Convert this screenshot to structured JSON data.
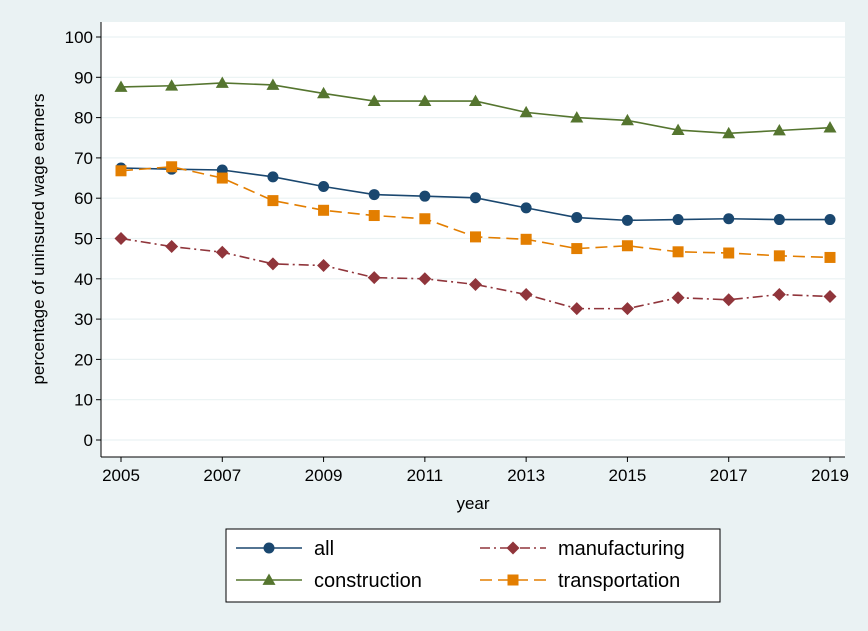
{
  "chart_data": {
    "type": "line",
    "xlabel": "year",
    "ylabel": "percentage of uninsured wage earners",
    "xlim": [
      2005,
      2019
    ],
    "ylim": [
      0,
      100
    ],
    "x_ticks": [
      2005,
      2007,
      2009,
      2011,
      2013,
      2015,
      2017,
      2019
    ],
    "y_ticks": [
      0,
      10,
      20,
      30,
      40,
      50,
      60,
      70,
      80,
      90,
      100
    ],
    "grid": "horizontal",
    "legend_position": "bottom",
    "x": [
      2005,
      2006,
      2007,
      2008,
      2009,
      2010,
      2011,
      2012,
      2013,
      2014,
      2015,
      2016,
      2017,
      2018,
      2019
    ],
    "series": [
      {
        "name": "all",
        "color": "#1a476f",
        "marker": "circle",
        "dash": "solid",
        "values": [
          67.5,
          67.2,
          67.0,
          65.3,
          62.9,
          60.9,
          60.5,
          60.1,
          57.6,
          55.2,
          54.5,
          54.7,
          54.9,
          54.7,
          54.7
        ]
      },
      {
        "name": "construction",
        "color": "#55752f",
        "marker": "triangle",
        "dash": "solid",
        "values": [
          87.6,
          87.9,
          88.6,
          88.1,
          86.0,
          84.1,
          84.1,
          84.1,
          81.3,
          80.0,
          79.3,
          76.9,
          76.1,
          76.8,
          77.5
        ]
      },
      {
        "name": "manufacturing",
        "color": "#90353b",
        "marker": "diamond",
        "dash": "dashdot",
        "values": [
          50.0,
          48.0,
          46.6,
          43.7,
          43.3,
          40.3,
          40.0,
          38.6,
          36.1,
          32.6,
          32.6,
          35.3,
          34.8,
          36.1,
          35.6
        ]
      },
      {
        "name": "transportation",
        "color": "#e37e00",
        "marker": "square",
        "dash": "dashed",
        "values": [
          66.8,
          67.8,
          65.0,
          59.4,
          57.0,
          55.7,
          54.9,
          50.4,
          49.8,
          47.5,
          48.2,
          46.7,
          46.4,
          45.7,
          45.3
        ]
      }
    ]
  }
}
